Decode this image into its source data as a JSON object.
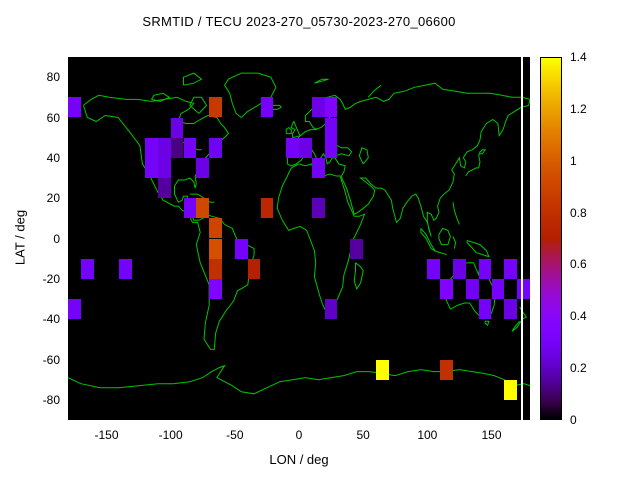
{
  "title": "SRMTID / TECU 2023-270_05730-2023-270_06600",
  "axes": {
    "xlabel": "LON / deg",
    "ylabel": "LAT / deg",
    "xlim": [
      -180,
      180
    ],
    "ylim": [
      -90,
      90
    ],
    "x_ticks": [
      -150,
      -100,
      -50,
      0,
      50,
      100,
      150
    ],
    "y_ticks": [
      -80,
      -60,
      -40,
      -20,
      0,
      20,
      40,
      60,
      80
    ]
  },
  "colorbar": {
    "range": [
      0,
      1.4
    ],
    "tick_labels": [
      "0",
      "0.2",
      "0.4",
      "0.6",
      "0.8",
      "1",
      "1.2",
      "1.4"
    ],
    "tick_values": [
      0,
      0.2,
      0.4,
      0.6,
      0.8,
      1.0,
      1.2,
      1.4
    ],
    "palette": "gnuplot default black-purple-red-orange-yellow"
  },
  "colors": {
    "page": "#ffffff",
    "map_background": "#000000",
    "coastline": "#00c400",
    "text": "#000000",
    "edge_line": "#ffffff"
  },
  "chart_data": {
    "type": "heatmap",
    "title": "SRMTID / TECU 2023-270_05730-2023-270_06600",
    "xlabel": "LON / deg",
    "ylabel": "LAT / deg",
    "value_unit": "TECU",
    "value_range": [
      0,
      1.4
    ],
    "cell_size_deg": 10,
    "cell_format": [
      "lon_west",
      "lat_south",
      "value"
    ],
    "cells": [
      [
        -180,
        60,
        0.3
      ],
      [
        -100,
        50,
        0.25
      ],
      [
        -70,
        60,
        0.85
      ],
      [
        -30,
        60,
        0.3
      ],
      [
        10,
        60,
        0.25
      ],
      [
        20,
        60,
        0.35
      ],
      [
        20,
        50,
        0.3
      ],
      [
        -120,
        40,
        0.3
      ],
      [
        -110,
        40,
        0.25
      ],
      [
        -100,
        40,
        0.12
      ],
      [
        -90,
        40,
        0.3
      ],
      [
        -70,
        40,
        0.28
      ],
      [
        -120,
        30,
        0.3
      ],
      [
        -110,
        30,
        0.25
      ],
      [
        -80,
        30,
        0.25
      ],
      [
        -10,
        40,
        0.3
      ],
      [
        0,
        40,
        0.25
      ],
      [
        20,
        40,
        0.3
      ],
      [
        10,
        30,
        0.28
      ],
      [
        -110,
        20,
        0.15
      ],
      [
        -90,
        10,
        0.3
      ],
      [
        -80,
        10,
        0.92
      ],
      [
        -30,
        10,
        0.75
      ],
      [
        10,
        10,
        0.18
      ],
      [
        -70,
        0,
        0.9
      ],
      [
        -70,
        -10,
        0.95
      ],
      [
        -50,
        -10,
        0.3
      ],
      [
        -40,
        -20,
        0.7
      ],
      [
        40,
        -10,
        0.15
      ],
      [
        -170,
        -20,
        0.3
      ],
      [
        -140,
        -20,
        0.3
      ],
      [
        -70,
        -20,
        0.8
      ],
      [
        -70,
        -30,
        0.35
      ],
      [
        100,
        -20,
        0.3
      ],
      [
        120,
        -20,
        0.25
      ],
      [
        140,
        -20,
        0.3
      ],
      [
        160,
        -20,
        0.3
      ],
      [
        110,
        -30,
        0.35
      ],
      [
        130,
        -30,
        0.28
      ],
      [
        150,
        -30,
        0.3
      ],
      [
        170,
        -30,
        0.3
      ],
      [
        140,
        -40,
        0.3
      ],
      [
        160,
        -40,
        0.25
      ],
      [
        -180,
        -40,
        0.3
      ],
      [
        20,
        -40,
        0.2
      ],
      [
        60,
        -70,
        1.4
      ],
      [
        110,
        -70,
        0.8
      ],
      [
        160,
        -80,
        1.4
      ]
    ]
  }
}
